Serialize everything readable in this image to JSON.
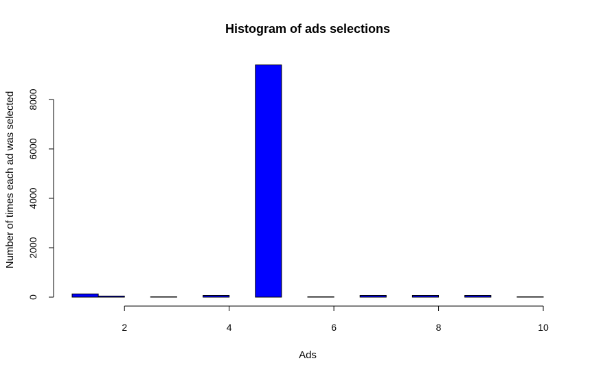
{
  "chart_data": {
    "type": "bar",
    "title": "Histogram of ads selections",
    "xlabel": "Ads",
    "ylabel": "Number of times each ad was selected",
    "bar_color": "#0000ff",
    "bar_border_color": "#000000",
    "x_ticks": [
      2,
      4,
      6,
      8,
      10
    ],
    "y_ticks": [
      0,
      2000,
      4000,
      6000,
      8000
    ],
    "xlim": [
      1,
      10
    ],
    "ylim": [
      0,
      9400
    ],
    "bins": [
      {
        "x0": 1.0,
        "x1": 1.5,
        "value": 130
      },
      {
        "x0": 1.5,
        "x1": 2.0,
        "value": 45
      },
      {
        "x0": 2.5,
        "x1": 3.0,
        "value": 15
      },
      {
        "x0": 3.5,
        "x1": 4.0,
        "value": 70
      },
      {
        "x0": 4.5,
        "x1": 5.0,
        "value": 9400
      },
      {
        "x0": 5.5,
        "x1": 6.0,
        "value": 15
      },
      {
        "x0": 6.5,
        "x1": 7.0,
        "value": 70
      },
      {
        "x0": 7.5,
        "x1": 8.0,
        "value": 70
      },
      {
        "x0": 8.5,
        "x1": 9.0,
        "value": 70
      },
      {
        "x0": 9.5,
        "x1": 10.0,
        "value": 15
      }
    ],
    "grid": false,
    "legend": "none"
  }
}
